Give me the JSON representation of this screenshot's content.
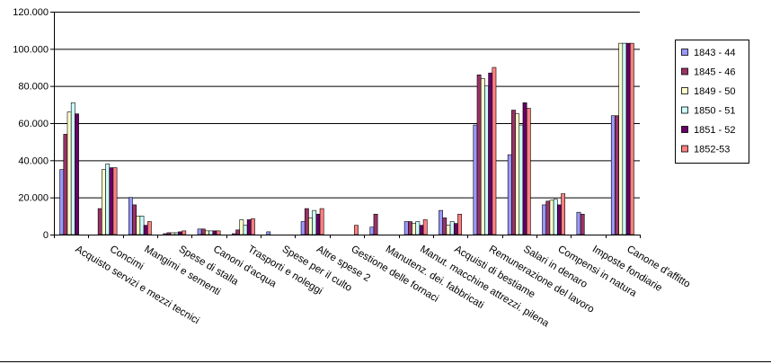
{
  "chart_data": {
    "type": "bar",
    "title": "",
    "xlabel": "",
    "ylabel": "",
    "ylim": [
      0,
      120000
    ],
    "yticks": [
      "0",
      "20.000",
      "40.000",
      "60.000",
      "80.000",
      "100.000",
      "120.000"
    ],
    "ytick_values": [
      0,
      20000,
      40000,
      60000,
      80000,
      100000,
      120000
    ],
    "grid": true,
    "legend_position": "right",
    "categories": [
      "Acquisto servizi e mezzi tecnici",
      "Concimi",
      "Mangimi e sementi",
      "Spese di stalla",
      "Canoni d'acqua",
      "Trasporti e noleggi",
      "Spese per il culto",
      "Altre spese 2",
      "Gestione delle fornaci",
      "Manutenz. dei. fabbricati",
      "Manut. macchine attrezzi. pilena",
      "Acquisti di bestiame",
      "Remunerazione del lavoro",
      "Salari in denaro",
      "Compensi in natura",
      "Imposte fondiarie",
      "Canone d'affitto"
    ],
    "series": [
      {
        "name": "1843 - 44",
        "color": "#9999FF",
        "values": [
          35000,
          0,
          20000,
          500,
          3000,
          500,
          1500,
          7000,
          0,
          4000,
          7000,
          13000,
          59000,
          43000,
          16000,
          12000,
          64000
        ]
      },
      {
        "name": "1845 - 46",
        "color": "#993366",
        "values": [
          54000,
          14000,
          16000,
          1000,
          3000,
          2500,
          0,
          14000,
          0,
          11000,
          7000,
          9000,
          86000,
          67000,
          18000,
          11000,
          64000
        ]
      },
      {
        "name": "1849 - 50",
        "color": "#FFFFCC",
        "values": [
          66000,
          35000,
          10000,
          1000,
          2000,
          8000,
          0,
          9000,
          0,
          0,
          6000,
          5000,
          84000,
          65000,
          18500,
          0,
          103000
        ]
      },
      {
        "name": "1850 - 51",
        "color": "#CCFFFF",
        "values": [
          71000,
          38000,
          10000,
          1000,
          2000,
          5000,
          0,
          13000,
          0,
          0,
          7000,
          7000,
          80000,
          59000,
          19000,
          0,
          103000
        ]
      },
      {
        "name": "1851 - 52",
        "color": "#660066",
        "values": [
          65000,
          36000,
          5000,
          1500,
          2000,
          8000,
          0,
          11000,
          0,
          0,
          5000,
          6000,
          87000,
          71000,
          16000,
          0,
          103000
        ]
      },
      {
        "name": "1852-53",
        "color": "#FF8080",
        "values": [
          0,
          36000,
          7000,
          2000,
          2000,
          8500,
          0,
          14000,
          5000,
          0,
          8000,
          11000,
          90000,
          68000,
          22000,
          0,
          103000
        ]
      }
    ]
  }
}
